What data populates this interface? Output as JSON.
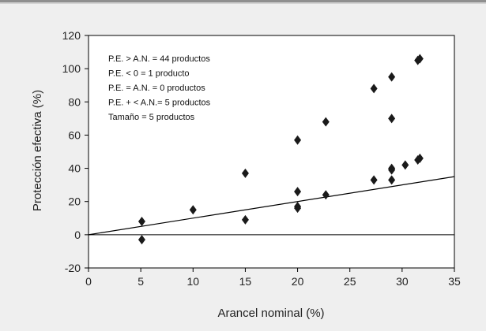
{
  "chart_data": {
    "type": "scatter",
    "xlabel": "Arancel nominal (%)",
    "ylabel": "Protección efectiva (%)",
    "xlim": [
      0,
      35
    ],
    "ylim": [
      -20,
      120
    ],
    "x_ticks": [
      0,
      5,
      10,
      15,
      20,
      25,
      30,
      35
    ],
    "y_ticks": [
      -20,
      0,
      20,
      40,
      60,
      80,
      100,
      120
    ],
    "grid": false,
    "marker": "diamond",
    "marker_color": "#1a1a1a",
    "points": [
      {
        "x": 5.1,
        "y": 8
      },
      {
        "x": 5.1,
        "y": -3
      },
      {
        "x": 10,
        "y": 15
      },
      {
        "x": 15,
        "y": 37
      },
      {
        "x": 15,
        "y": 9
      },
      {
        "x": 20,
        "y": 57
      },
      {
        "x": 20,
        "y": 26
      },
      {
        "x": 20,
        "y": 17
      },
      {
        "x": 20,
        "y": 16
      },
      {
        "x": 22.7,
        "y": 68
      },
      {
        "x": 22.7,
        "y": 24
      },
      {
        "x": 27.3,
        "y": 88
      },
      {
        "x": 27.3,
        "y": 33
      },
      {
        "x": 29,
        "y": 95
      },
      {
        "x": 29,
        "y": 70
      },
      {
        "x": 29,
        "y": 40
      },
      {
        "x": 29,
        "y": 39
      },
      {
        "x": 29,
        "y": 33
      },
      {
        "x": 30.3,
        "y": 42
      },
      {
        "x": 31.5,
        "y": 105
      },
      {
        "x": 31.7,
        "y": 106
      },
      {
        "x": 31.5,
        "y": 45
      },
      {
        "x": 31.7,
        "y": 46
      }
    ],
    "reference_line": {
      "x": [
        0,
        35
      ],
      "y": [
        0,
        35
      ]
    },
    "annotations": [
      "P.E. > A.N. = 44 productos",
      "P.E. < 0 = 1 producto",
      "P.E. = A.N. = 0 productos",
      "P.E. + < A.N.= 5 productos",
      "Tamaño = 5 productos"
    ]
  }
}
